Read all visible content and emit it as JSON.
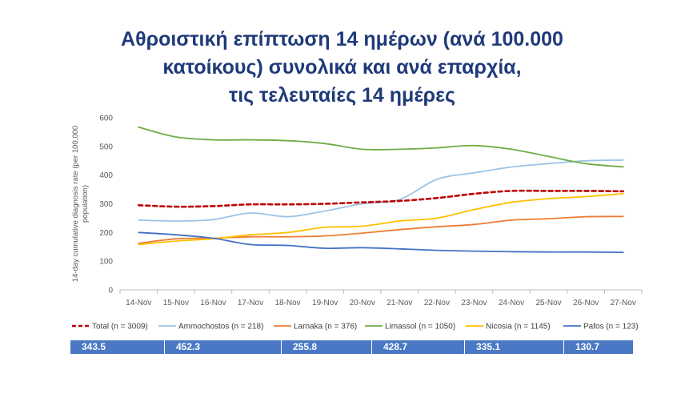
{
  "title_lines": [
    "Αθροιστική επίπτωση 14 ημέρων (ανά 100.000",
    "κατοίκους) συνολικά και ανά επαρχία,",
    "τις τελευταίες 14 ημέρες"
  ],
  "chart_data": {
    "type": "line",
    "title": "Αθροιστική επίπτωση 14 ημέρων (ανά 100.000 κατοίκους) συνολικά και ανά επαρχία, τις τελευταίες 14 ημέρες",
    "xlabel": "",
    "ylabel": "14-day cumulative diagnosis rate (per 100,000 population)",
    "ylabel_lines": [
      "14-day cumulative diagnosis rate (per 100,000",
      "population)"
    ],
    "ylim": [
      0,
      600
    ],
    "yticks": [
      0,
      100,
      200,
      300,
      400,
      500,
      600
    ],
    "grid": false,
    "legend_position": "bottom",
    "categories": [
      "14-Nov",
      "15-Nov",
      "16-Nov",
      "17-Nov",
      "18-Nov",
      "19-Nov",
      "20-Nov",
      "21-Nov",
      "22-Nov",
      "23-Nov",
      "24-Nov",
      "25-Nov",
      "26-Nov",
      "27-Nov"
    ],
    "series": [
      {
        "name": "Total (n = 3009)",
        "color": "#c00000",
        "dashed": true,
        "values": [
          295,
          290,
          292,
          298,
          298,
          300,
          305,
          310,
          320,
          335,
          345,
          345,
          345,
          343.5
        ]
      },
      {
        "name": "Ammochostos (n = 218)",
        "color": "#9dc3e6",
        "dashed": false,
        "values": [
          243,
          240,
          245,
          268,
          255,
          275,
          300,
          315,
          385,
          408,
          428,
          440,
          450,
          452.3
        ]
      },
      {
        "name": "Larnaka (n = 376)",
        "color": "#ed7d31",
        "dashed": false,
        "values": [
          162,
          178,
          180,
          185,
          185,
          188,
          198,
          210,
          220,
          228,
          243,
          248,
          255,
          255.8
        ]
      },
      {
        "name": "Limassol (n = 1050)",
        "color": "#70ad47",
        "dashed": false,
        "values": [
          567,
          533,
          523,
          523,
          520,
          510,
          490,
          490,
          495,
          503,
          490,
          465,
          440,
          428.7
        ]
      },
      {
        "name": "Nicosia (n = 1145)",
        "color": "#ffc000",
        "dashed": false,
        "values": [
          158,
          170,
          178,
          192,
          200,
          218,
          222,
          240,
          250,
          280,
          305,
          318,
          325,
          335.1
        ]
      },
      {
        "name": "Pafos (n = 123)",
        "color": "#4472c4",
        "dashed": false,
        "values": [
          200,
          192,
          180,
          158,
          155,
          145,
          147,
          143,
          138,
          135,
          133,
          132,
          132,
          130.7
        ]
      }
    ]
  },
  "summary_values": [
    "343.5",
    "452.3",
    "255.8",
    "428.7",
    "335.1",
    "130.7"
  ]
}
